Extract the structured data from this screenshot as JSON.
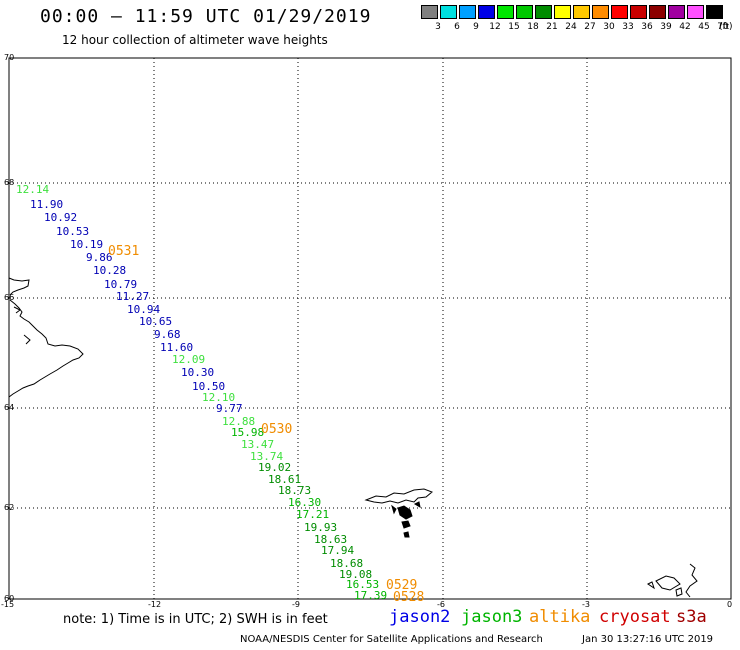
{
  "header": {
    "title": "00:00 — 11:59 UTC 01/29/2019",
    "subtitle": "12 hour collection of altimeter wave heights"
  },
  "color_scale": {
    "unit": "(ft)",
    "swatches": [
      {
        "label": "3",
        "color": "#808080"
      },
      {
        "label": "6",
        "color": "#00e0e0"
      },
      {
        "label": "9",
        "color": "#00a0ff"
      },
      {
        "label": "12",
        "color": "#0000e6"
      },
      {
        "label": "15",
        "color": "#00e600"
      },
      {
        "label": "18",
        "color": "#00c800"
      },
      {
        "label": "21",
        "color": "#008c00"
      },
      {
        "label": "24",
        "color": "#ffff00"
      },
      {
        "label": "27",
        "color": "#ffc800"
      },
      {
        "label": "30",
        "color": "#ff8c00"
      },
      {
        "label": "33",
        "color": "#ff0000"
      },
      {
        "label": "36",
        "color": "#c80000"
      },
      {
        "label": "39",
        "color": "#8c0000"
      },
      {
        "label": "42",
        "color": "#a000a0"
      },
      {
        "label": "45",
        "color": "#ff50ff"
      },
      {
        "label": "70",
        "color": "#000000"
      }
    ]
  },
  "map": {
    "lat_labels": [
      "70",
      "68",
      "66",
      "64",
      "62",
      "60"
    ],
    "lon_labels": [
      "-15",
      "-12",
      "-9",
      "-6",
      "-3",
      "0"
    ]
  },
  "wave_heights": [
    {
      "value": "12.14",
      "color": "#3ee03e"
    },
    {
      "value": "11.90",
      "color": "#0000b4"
    },
    {
      "value": "10.92",
      "color": "#0000b4"
    },
    {
      "value": "10.53",
      "color": "#0000b4"
    },
    {
      "value": "10.19",
      "color": "#0000b4"
    },
    {
      "value": "9.86",
      "color": "#0000b4"
    },
    {
      "value": "10.28",
      "color": "#0000b4"
    },
    {
      "value": "10.79",
      "color": "#0000b4"
    },
    {
      "value": "11.27",
      "color": "#0000b4"
    },
    {
      "value": "10.94",
      "color": "#0000b4"
    },
    {
      "value": "10.65",
      "color": "#0000b4"
    },
    {
      "value": "9.68",
      "color": "#0000b4"
    },
    {
      "value": "11.60",
      "color": "#0000b4"
    },
    {
      "value": "12.09",
      "color": "#3ee03e"
    },
    {
      "value": "10.30",
      "color": "#0000b4"
    },
    {
      "value": "10.50",
      "color": "#0000b4"
    },
    {
      "value": "12.10",
      "color": "#3ee03e"
    },
    {
      "value": "9.77",
      "color": "#0000b4"
    },
    {
      "value": "12.88",
      "color": "#3ee03e"
    },
    {
      "value": "15.98",
      "color": "#00b400"
    },
    {
      "value": "13.47",
      "color": "#3ee03e"
    },
    {
      "value": "13.74",
      "color": "#3ee03e"
    },
    {
      "value": "19.02",
      "color": "#008c00"
    },
    {
      "value": "18.61",
      "color": "#008c00"
    },
    {
      "value": "18.73",
      "color": "#008c00"
    },
    {
      "value": "16.30",
      "color": "#00b400"
    },
    {
      "value": "17.21",
      "color": "#00b400"
    },
    {
      "value": "19.93",
      "color": "#008c00"
    },
    {
      "value": "18.63",
      "color": "#008c00"
    },
    {
      "value": "17.94",
      "color": "#008c00"
    },
    {
      "value": "18.68",
      "color": "#008c00"
    },
    {
      "value": "19.08",
      "color": "#008c00"
    },
    {
      "value": "16.53",
      "color": "#00b400"
    },
    {
      "value": "17.39",
      "color": "#00b400"
    }
  ],
  "pass_labels": [
    "0531",
    "0530",
    "0529",
    "0528"
  ],
  "note": "note: 1) Time is in UTC; 2) SWH is in feet",
  "legend": [
    {
      "label": "jason2",
      "color": "#0000e6"
    },
    {
      "label": "jason3",
      "color": "#00b400"
    },
    {
      "label": "altika",
      "color": "#f08c00"
    },
    {
      "label": "cryosat",
      "color": "#d00000"
    },
    {
      "label": "s3a",
      "color": "#a00000"
    }
  ],
  "footer": {
    "credit": "NOAA/NESDIS Center for Satellite Applications and Research",
    "timestamp": "Jan 30 13:27:16 UTC 2019"
  }
}
